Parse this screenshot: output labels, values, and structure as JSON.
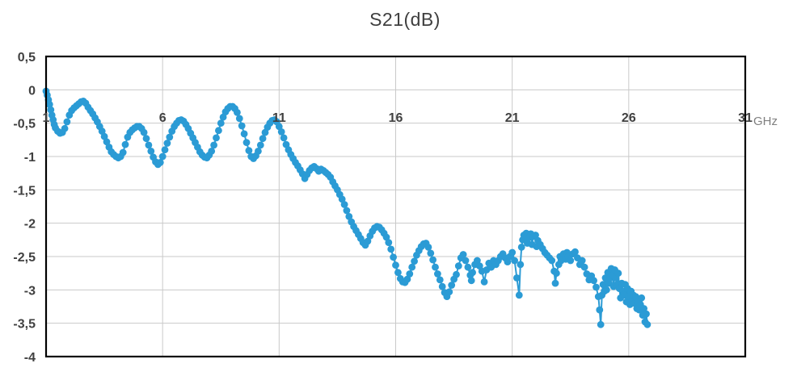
{
  "title": "S21(dB)",
  "axis": {
    "x_tick_labels": [
      "1",
      "6",
      "11",
      "16",
      "21",
      "26",
      "31"
    ],
    "y_tick_labels": [
      "0,5",
      "0",
      "-0,5",
      "-1",
      "-1,5",
      "-2",
      "-2,5",
      "-3",
      "-3,5",
      "-4"
    ],
    "x_unit": "GHz"
  },
  "colors": {
    "series": "#2b9bd5",
    "grid": "#c9c9c9",
    "border": "#000000",
    "tick_label": "#404040",
    "title": "#3f3f3f",
    "unit_label": "#7f7f7f"
  },
  "chart_data": {
    "type": "scatter",
    "title": "S21(dB)",
    "xlabel": "GHz",
    "ylabel": "",
    "xlim": [
      1,
      31
    ],
    "ylim": [
      -4,
      0.5
    ],
    "x_ticks": [
      1,
      6,
      11,
      16,
      21,
      26,
      31
    ],
    "y_ticks": [
      0.5,
      0,
      -0.5,
      -1,
      -1.5,
      -2,
      -2.5,
      -3,
      -3.5,
      -4
    ],
    "grid": true,
    "legend": false,
    "series": [
      {
        "name": "S21",
        "marker": "circle",
        "points": [
          [
            1,
            -0.02
          ],
          [
            1.05,
            -0.08
          ],
          [
            1.1,
            -0.15
          ],
          [
            1.15,
            -0.22
          ],
          [
            1.2,
            -0.3
          ],
          [
            1.25,
            -0.38
          ],
          [
            1.3,
            -0.45
          ],
          [
            1.35,
            -0.52
          ],
          [
            1.4,
            -0.57
          ],
          [
            1.5,
            -0.62
          ],
          [
            1.6,
            -0.65
          ],
          [
            1.7,
            -0.64
          ],
          [
            1.8,
            -0.58
          ],
          [
            1.9,
            -0.48
          ],
          [
            2,
            -0.38
          ],
          [
            2.1,
            -0.31
          ],
          [
            2.2,
            -0.27
          ],
          [
            2.3,
            -0.24
          ],
          [
            2.4,
            -0.21
          ],
          [
            2.5,
            -0.18
          ],
          [
            2.6,
            -0.17
          ],
          [
            2.7,
            -0.2
          ],
          [
            2.8,
            -0.26
          ],
          [
            2.9,
            -0.31
          ],
          [
            3,
            -0.36
          ],
          [
            3.1,
            -0.42
          ],
          [
            3.2,
            -0.48
          ],
          [
            3.3,
            -0.55
          ],
          [
            3.4,
            -0.62
          ],
          [
            3.5,
            -0.7
          ],
          [
            3.6,
            -0.78
          ],
          [
            3.7,
            -0.86
          ],
          [
            3.8,
            -0.93
          ],
          [
            3.9,
            -0.97
          ],
          [
            4,
            -1
          ],
          [
            4.1,
            -1.02
          ],
          [
            4.2,
            -1
          ],
          [
            4.3,
            -0.94
          ],
          [
            4.4,
            -0.82
          ],
          [
            4.5,
            -0.71
          ],
          [
            4.6,
            -0.64
          ],
          [
            4.7,
            -0.6
          ],
          [
            4.8,
            -0.57
          ],
          [
            4.9,
            -0.55
          ],
          [
            5,
            -0.55
          ],
          [
            5.1,
            -0.58
          ],
          [
            5.2,
            -0.64
          ],
          [
            5.3,
            -0.73
          ],
          [
            5.4,
            -0.83
          ],
          [
            5.5,
            -0.92
          ],
          [
            5.6,
            -1.01
          ],
          [
            5.7,
            -1.08
          ],
          [
            5.8,
            -1.12
          ],
          [
            5.9,
            -1.09
          ],
          [
            6,
            -1
          ],
          [
            6.1,
            -0.9
          ],
          [
            6.2,
            -0.8
          ],
          [
            6.3,
            -0.71
          ],
          [
            6.4,
            -0.62
          ],
          [
            6.5,
            -0.55
          ],
          [
            6.6,
            -0.5
          ],
          [
            6.7,
            -0.46
          ],
          [
            6.8,
            -0.45
          ],
          [
            6.9,
            -0.47
          ],
          [
            7,
            -0.52
          ],
          [
            7.1,
            -0.58
          ],
          [
            7.2,
            -0.65
          ],
          [
            7.3,
            -0.72
          ],
          [
            7.4,
            -0.79
          ],
          [
            7.5,
            -0.86
          ],
          [
            7.6,
            -0.93
          ],
          [
            7.7,
            -0.98
          ],
          [
            7.8,
            -1.01
          ],
          [
            7.9,
            -1.02
          ],
          [
            8,
            -0.98
          ],
          [
            8.1,
            -0.92
          ],
          [
            8.2,
            -0.83
          ],
          [
            8.3,
            -0.72
          ],
          [
            8.4,
            -0.61
          ],
          [
            8.5,
            -0.5
          ],
          [
            8.6,
            -0.41
          ],
          [
            8.7,
            -0.33
          ],
          [
            8.8,
            -0.28
          ],
          [
            8.9,
            -0.25
          ],
          [
            9,
            -0.25
          ],
          [
            9.1,
            -0.28
          ],
          [
            9.2,
            -0.34
          ],
          [
            9.3,
            -0.43
          ],
          [
            9.4,
            -0.54
          ],
          [
            9.5,
            -0.66
          ],
          [
            9.6,
            -0.79
          ],
          [
            9.7,
            -0.91
          ],
          [
            9.8,
            -1
          ],
          [
            9.9,
            -1.03
          ],
          [
            10,
            -0.99
          ],
          [
            10.1,
            -0.92
          ],
          [
            10.2,
            -0.83
          ],
          [
            10.3,
            -0.73
          ],
          [
            10.4,
            -0.64
          ],
          [
            10.5,
            -0.56
          ],
          [
            10.6,
            -0.5
          ],
          [
            10.7,
            -0.46
          ],
          [
            10.8,
            -0.45
          ],
          [
            10.9,
            -0.48
          ],
          [
            11,
            -0.55
          ],
          [
            11.1,
            -0.63
          ],
          [
            11.2,
            -0.72
          ],
          [
            11.3,
            -0.82
          ],
          [
            11.4,
            -0.9
          ],
          [
            11.5,
            -0.97
          ],
          [
            11.6,
            -1.03
          ],
          [
            11.7,
            -1.09
          ],
          [
            11.8,
            -1.14
          ],
          [
            11.9,
            -1.2
          ],
          [
            12,
            -1.26
          ],
          [
            12.1,
            -1.33
          ],
          [
            12.2,
            -1.27
          ],
          [
            12.3,
            -1.21
          ],
          [
            12.4,
            -1.17
          ],
          [
            12.5,
            -1.15
          ],
          [
            12.6,
            -1.18
          ],
          [
            12.7,
            -1.22
          ],
          [
            12.8,
            -1.19
          ],
          [
            12.9,
            -1.21
          ],
          [
            13,
            -1.24
          ],
          [
            13.1,
            -1.27
          ],
          [
            13.2,
            -1.31
          ],
          [
            13.3,
            -1.38
          ],
          [
            13.4,
            -1.44
          ],
          [
            13.5,
            -1.5
          ],
          [
            13.6,
            -1.57
          ],
          [
            13.7,
            -1.64
          ],
          [
            13.8,
            -1.72
          ],
          [
            13.9,
            -1.81
          ],
          [
            14,
            -1.9
          ],
          [
            14.1,
            -1.98
          ],
          [
            14.2,
            -2.05
          ],
          [
            14.3,
            -2.11
          ],
          [
            14.4,
            -2.17
          ],
          [
            14.5,
            -2.23
          ],
          [
            14.6,
            -2.29
          ],
          [
            14.7,
            -2.33
          ],
          [
            14.8,
            -2.27
          ],
          [
            14.9,
            -2.19
          ],
          [
            15,
            -2.12
          ],
          [
            15.1,
            -2.07
          ],
          [
            15.2,
            -2.05
          ],
          [
            15.3,
            -2.06
          ],
          [
            15.4,
            -2.1
          ],
          [
            15.5,
            -2.15
          ],
          [
            15.6,
            -2.21
          ],
          [
            15.7,
            -2.29
          ],
          [
            15.8,
            -2.39
          ],
          [
            15.9,
            -2.51
          ],
          [
            16,
            -2.63
          ],
          [
            16.1,
            -2.74
          ],
          [
            16.2,
            -2.83
          ],
          [
            16.3,
            -2.88
          ],
          [
            16.4,
            -2.89
          ],
          [
            16.5,
            -2.84
          ],
          [
            16.6,
            -2.76
          ],
          [
            16.7,
            -2.66
          ],
          [
            16.8,
            -2.57
          ],
          [
            16.9,
            -2.48
          ],
          [
            17,
            -2.41
          ],
          [
            17.1,
            -2.35
          ],
          [
            17.2,
            -2.31
          ],
          [
            17.3,
            -2.3
          ],
          [
            17.4,
            -2.36
          ],
          [
            17.5,
            -2.45
          ],
          [
            17.6,
            -2.55
          ],
          [
            17.7,
            -2.66
          ],
          [
            17.8,
            -2.76
          ],
          [
            17.9,
            -2.85
          ],
          [
            18,
            -2.95
          ],
          [
            18.1,
            -3.04
          ],
          [
            18.2,
            -3.1
          ],
          [
            18.3,
            -3.03
          ],
          [
            18.4,
            -2.93
          ],
          [
            18.5,
            -2.84
          ],
          [
            18.6,
            -2.77
          ],
          [
            18.7,
            -2.64
          ],
          [
            18.8,
            -2.52
          ],
          [
            18.9,
            -2.47
          ],
          [
            19,
            -2.56
          ],
          [
            19.1,
            -2.66
          ],
          [
            19.2,
            -2.78
          ],
          [
            19.25,
            -2.86
          ],
          [
            19.3,
            -2.74
          ],
          [
            19.4,
            -2.62
          ],
          [
            19.5,
            -2.56
          ],
          [
            19.6,
            -2.64
          ],
          [
            19.7,
            -2.72
          ],
          [
            19.8,
            -2.88
          ],
          [
            19.9,
            -2.7
          ],
          [
            20,
            -2.6
          ],
          [
            20.1,
            -2.66
          ],
          [
            20.2,
            -2.56
          ],
          [
            20.3,
            -2.62
          ],
          [
            20.4,
            -2.56
          ],
          [
            20.5,
            -2.5
          ],
          [
            20.6,
            -2.46
          ],
          [
            20.7,
            -2.52
          ],
          [
            20.8,
            -2.58
          ],
          [
            20.9,
            -2.5
          ],
          [
            21,
            -2.44
          ],
          [
            21.1,
            -2.56
          ],
          [
            21.2,
            -2.82
          ],
          [
            21.3,
            -3.08
          ],
          [
            21.35,
            -2.62
          ],
          [
            21.4,
            -2.36
          ],
          [
            21.45,
            -2.25
          ],
          [
            21.5,
            -2.18
          ],
          [
            21.6,
            -2.15
          ],
          [
            21.65,
            -2.3
          ],
          [
            21.7,
            -2.22
          ],
          [
            21.8,
            -2.16
          ],
          [
            21.85,
            -2.32
          ],
          [
            21.9,
            -2.2
          ],
          [
            22,
            -2.18
          ],
          [
            22.05,
            -2.35
          ],
          [
            22.1,
            -2.26
          ],
          [
            22.2,
            -2.32
          ],
          [
            22.3,
            -2.38
          ],
          [
            22.4,
            -2.44
          ],
          [
            22.5,
            -2.48
          ],
          [
            22.6,
            -2.52
          ],
          [
            22.7,
            -2.56
          ],
          [
            22.8,
            -2.72
          ],
          [
            22.85,
            -2.9
          ],
          [
            22.9,
            -2.75
          ],
          [
            23,
            -2.62
          ],
          [
            23.05,
            -2.5
          ],
          [
            23.1,
            -2.56
          ],
          [
            23.2,
            -2.46
          ],
          [
            23.3,
            -2.54
          ],
          [
            23.35,
            -2.44
          ],
          [
            23.4,
            -2.5
          ],
          [
            23.5,
            -2.56
          ],
          [
            23.6,
            -2.46
          ],
          [
            23.7,
            -2.43
          ],
          [
            23.8,
            -2.52
          ],
          [
            23.9,
            -2.62
          ],
          [
            24,
            -2.56
          ],
          [
            24.1,
            -2.66
          ],
          [
            24.2,
            -2.76
          ],
          [
            24.3,
            -2.85
          ],
          [
            24.4,
            -2.79
          ],
          [
            24.5,
            -2.86
          ],
          [
            24.6,
            -2.96
          ],
          [
            24.7,
            -3.1
          ],
          [
            24.75,
            -3.3
          ],
          [
            24.8,
            -3.52
          ],
          [
            24.85,
            -3.08
          ],
          [
            24.9,
            -2.92
          ],
          [
            24.95,
            -3.02
          ],
          [
            25,
            -2.82
          ],
          [
            25.05,
            -3
          ],
          [
            25.1,
            -2.74
          ],
          [
            25.15,
            -2.9
          ],
          [
            25.2,
            -2.82
          ],
          [
            25.25,
            -2.68
          ],
          [
            25.3,
            -2.78
          ],
          [
            25.35,
            -2.95
          ],
          [
            25.4,
            -2.7
          ],
          [
            25.45,
            -2.82
          ],
          [
            25.5,
            -2.92
          ],
          [
            25.55,
            -2.75
          ],
          [
            25.6,
            -2.98
          ],
          [
            25.65,
            -3.12
          ],
          [
            25.7,
            -2.9
          ],
          [
            25.75,
            -3.02
          ],
          [
            25.8,
            -3.08
          ],
          [
            25.85,
            -2.92
          ],
          [
            25.9,
            -3.18
          ],
          [
            25.95,
            -2.98
          ],
          [
            26,
            -3.1
          ],
          [
            26.05,
            -3.22
          ],
          [
            26.1,
            -3.02
          ],
          [
            26.15,
            -3.16
          ],
          [
            26.2,
            -3.08
          ],
          [
            26.25,
            -3.2
          ],
          [
            26.3,
            -3.1
          ],
          [
            26.35,
            -3.28
          ],
          [
            26.4,
            -3.18
          ],
          [
            26.45,
            -3.3
          ],
          [
            26.5,
            -3.22
          ],
          [
            26.55,
            -3.12
          ],
          [
            26.6,
            -3.38
          ],
          [
            26.65,
            -3.28
          ],
          [
            26.7,
            -3.48
          ],
          [
            26.75,
            -3.36
          ],
          [
            26.8,
            -3.52
          ]
        ]
      }
    ]
  }
}
